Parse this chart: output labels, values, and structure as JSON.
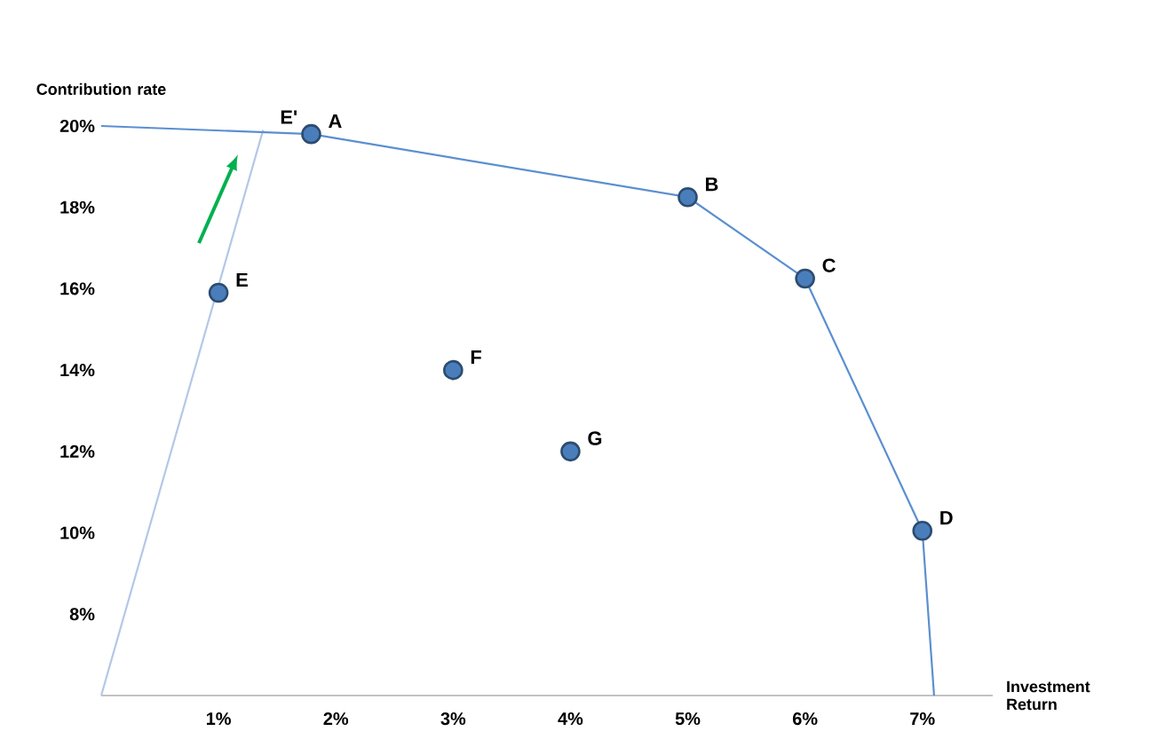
{
  "chart_data": {
    "type": "scatter",
    "xlabel": "Investment Return",
    "ylabel": "Contribution rate",
    "xlim": [
      0,
      7.6
    ],
    "ylim": [
      6,
      20
    ],
    "xticks": [
      {
        "value": 1,
        "label": "1%"
      },
      {
        "value": 2,
        "label": "2%"
      },
      {
        "value": 3,
        "label": "3%"
      },
      {
        "value": 4,
        "label": "4%"
      },
      {
        "value": 5,
        "label": "5%"
      },
      {
        "value": 6,
        "label": "6%"
      },
      {
        "value": 7,
        "label": "7%"
      }
    ],
    "yticks": [
      {
        "value": 8,
        "label": "8%"
      },
      {
        "value": 10,
        "label": "10%"
      },
      {
        "value": 12,
        "label": "12%"
      },
      {
        "value": 14,
        "label": "14%"
      },
      {
        "value": 16,
        "label": "16%"
      },
      {
        "value": 18,
        "label": "18%"
      },
      {
        "value": 20,
        "label": "20%"
      }
    ],
    "series": [
      {
        "type": "line",
        "color": "#b4c7e7",
        "marker": "none",
        "line_style": "solid",
        "x": [
          0,
          1.38
        ],
        "values": [
          6,
          19.9
        ]
      },
      {
        "type": "line",
        "color": "#5b8fd0",
        "marker": "none",
        "line_style": "solid",
        "x": [
          0,
          1.79,
          5.0,
          6.0,
          7.0,
          7.1
        ],
        "values": [
          20,
          19.8,
          18.25,
          16.25,
          10.05,
          6
        ]
      },
      {
        "color": "#4a7ebb",
        "marker": "circle",
        "x": [
          1.79,
          5.0,
          6.0,
          7.0,
          1.0,
          3.0,
          4.0
        ],
        "values": [
          19.8,
          18.25,
          16.25,
          10.05,
          15.9,
          14.0,
          12.0
        ]
      }
    ],
    "annotations": [
      {
        "text": "A",
        "x": 1.79,
        "y": 19.8
      },
      {
        "text": "B",
        "x": 5.0,
        "y": 18.25
      },
      {
        "text": "C",
        "x": 6.0,
        "y": 16.25
      },
      {
        "text": "D",
        "x": 7.0,
        "y": 10.05
      },
      {
        "text": "E",
        "x": 1.0,
        "y": 15.9
      },
      {
        "text": "F",
        "x": 3.0,
        "y": 14.0
      },
      {
        "text": "G",
        "x": 4.0,
        "y": 12.0
      },
      {
        "text": "E'",
        "x": 1.38,
        "y": 19.9
      }
    ]
  }
}
